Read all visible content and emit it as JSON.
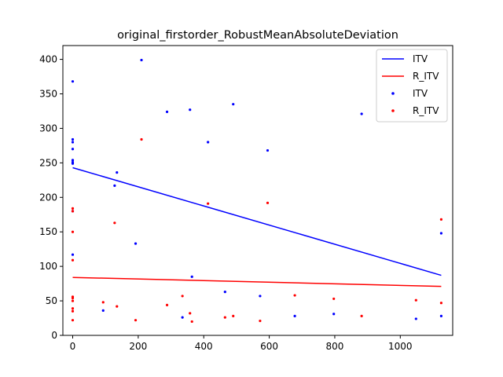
{
  "chart_data": {
    "type": "scatter",
    "title": "original_firstorder_RobustMeanAbsoluteDeviation",
    "xlabel": "",
    "ylabel": "",
    "xlim": [
      -30,
      1160
    ],
    "ylim": [
      0,
      420
    ],
    "x_ticks": [
      0,
      200,
      400,
      600,
      800,
      1000
    ],
    "y_ticks": [
      0,
      50,
      100,
      150,
      200,
      250,
      300,
      350,
      400
    ],
    "grid": false,
    "legend_position": "top-right",
    "series": [
      {
        "name": "ITV",
        "kind": "line",
        "color": "#0000ff",
        "points": [
          [
            0,
            243
          ],
          [
            1125,
            87
          ]
        ]
      },
      {
        "name": "R_ITV",
        "kind": "line",
        "color": "#ff0000",
        "points": [
          [
            0,
            84
          ],
          [
            1125,
            71
          ]
        ]
      },
      {
        "name": "ITV",
        "kind": "scatter",
        "color": "#0000ff",
        "points": [
          [
            0,
            368
          ],
          [
            0,
            284
          ],
          [
            0,
            280
          ],
          [
            0,
            270
          ],
          [
            0,
            254
          ],
          [
            0,
            251
          ],
          [
            0,
            249
          ],
          [
            0,
            180
          ],
          [
            0,
            117
          ],
          [
            93,
            36
          ],
          [
            128,
            217
          ],
          [
            135,
            236
          ],
          [
            192,
            133
          ],
          [
            210,
            399
          ],
          [
            288,
            324
          ],
          [
            335,
            26
          ],
          [
            358,
            327
          ],
          [
            364,
            85
          ],
          [
            413,
            280
          ],
          [
            465,
            63
          ],
          [
            490,
            335
          ],
          [
            572,
            57
          ],
          [
            595,
            268
          ],
          [
            678,
            28
          ],
          [
            797,
            31
          ],
          [
            882,
            321
          ],
          [
            1048,
            24
          ],
          [
            1125,
            148
          ],
          [
            1125,
            28
          ]
        ]
      },
      {
        "name": "R_ITV",
        "kind": "scatter",
        "color": "#ff0000",
        "points": [
          [
            0,
            184
          ],
          [
            0,
            180
          ],
          [
            0,
            150
          ],
          [
            0,
            109
          ],
          [
            0,
            56
          ],
          [
            0,
            54
          ],
          [
            0,
            50
          ],
          [
            0,
            39
          ],
          [
            0,
            35
          ],
          [
            0,
            22
          ],
          [
            93,
            48
          ],
          [
            128,
            163
          ],
          [
            135,
            42
          ],
          [
            192,
            22
          ],
          [
            210,
            284
          ],
          [
            288,
            44
          ],
          [
            335,
            57
          ],
          [
            358,
            32
          ],
          [
            364,
            20
          ],
          [
            413,
            191
          ],
          [
            465,
            26
          ],
          [
            490,
            28
          ],
          [
            572,
            21
          ],
          [
            595,
            192
          ],
          [
            678,
            58
          ],
          [
            797,
            53
          ],
          [
            882,
            28
          ],
          [
            1048,
            51
          ],
          [
            1125,
            168
          ],
          [
            1125,
            47
          ]
        ]
      }
    ]
  }
}
